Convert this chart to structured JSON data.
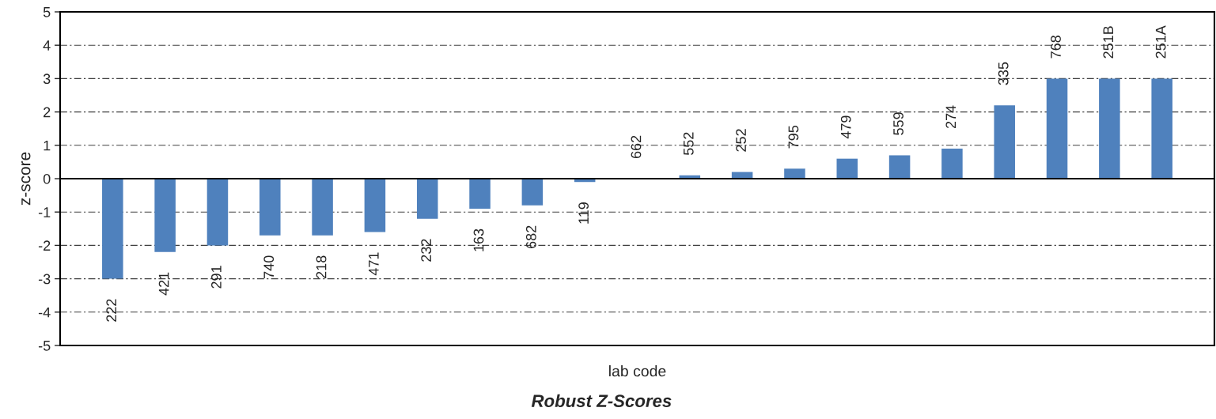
{
  "chart_data": {
    "type": "bar",
    "title": "Robust Z-Scores",
    "xlabel": "lab code",
    "ylabel": "z-score",
    "categories": [
      "222",
      "421",
      "291",
      "740",
      "218",
      "471",
      "232",
      "163",
      "682",
      "119",
      "662",
      "552",
      "252",
      "795",
      "479",
      "559",
      "274",
      "335",
      "768",
      "251B",
      "251A"
    ],
    "values": [
      -3.0,
      -2.2,
      -2.0,
      -1.7,
      -1.7,
      -1.6,
      -1.2,
      -0.9,
      -0.8,
      -0.1,
      0.0,
      0.1,
      0.2,
      0.3,
      0.6,
      0.7,
      0.9,
      2.2,
      3.0,
      3.0,
      3.0
    ],
    "color": "#4f81bd",
    "ylim": [
      -5,
      5
    ],
    "yticks": [
      -5,
      -4,
      -3,
      -2,
      -1,
      0,
      1,
      2,
      3,
      4,
      5
    ],
    "grid": "y",
    "legend": false
  }
}
